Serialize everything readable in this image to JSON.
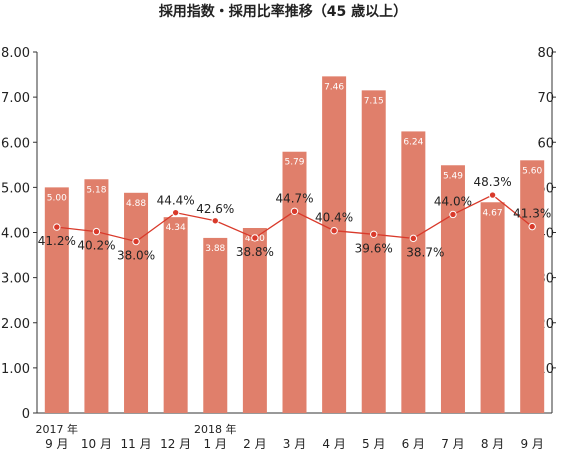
{
  "chart_data": {
    "type": "bar",
    "title": "採用指数・採用比率推移（45 歳以上）",
    "categories": [
      "9 月",
      "10 月",
      "11 月",
      "12 月",
      "1 月",
      "2 月",
      "3 月",
      "4 月",
      "5 月",
      "6 月",
      "7 月",
      "8 月",
      "9 月"
    ],
    "year_labels": [
      {
        "index": 0,
        "label": "2017 年"
      },
      {
        "index": 4,
        "label": "2018 年"
      }
    ],
    "series": [
      {
        "type": "bar",
        "axis": "left",
        "color": "#e07f6b",
        "values": [
          5.0,
          5.18,
          4.88,
          4.34,
          3.88,
          4.1,
          5.79,
          7.46,
          7.15,
          6.24,
          5.49,
          4.67,
          5.6
        ],
        "labels": [
          "5.00",
          "5.18",
          "4.88",
          "4.34",
          "3.88",
          "4.10",
          "5.79",
          "7.46",
          "7.15",
          "6.24",
          "5.49",
          "4.67",
          "5.60"
        ]
      },
      {
        "type": "line",
        "axis": "right",
        "color": "#d93a2b",
        "values": [
          41.2,
          40.2,
          38.0,
          44.4,
          42.6,
          38.8,
          44.7,
          40.4,
          39.6,
          38.7,
          44.0,
          48.3,
          41.3
        ],
        "labels": [
          "41.2%",
          "40.2%",
          "38.0%",
          "44.4%",
          "42.6%",
          "38.8%",
          "44.7%",
          "40.4%",
          "39.6%",
          "38.7%",
          "44.0%",
          "48.3%",
          "41.3%"
        ]
      }
    ],
    "y_left": {
      "min": 0,
      "max": 8,
      "ticks": [
        "0",
        "1.00",
        "2.00",
        "3.00",
        "4.00",
        "5.00",
        "6.00",
        "7.00",
        "8.00"
      ]
    },
    "y_right": {
      "min": 0,
      "max": 80,
      "ticks": [
        "10",
        "20",
        "30",
        "40",
        "50",
        "60",
        "70",
        "80"
      ]
    },
    "grid": false,
    "legend": "none"
  }
}
